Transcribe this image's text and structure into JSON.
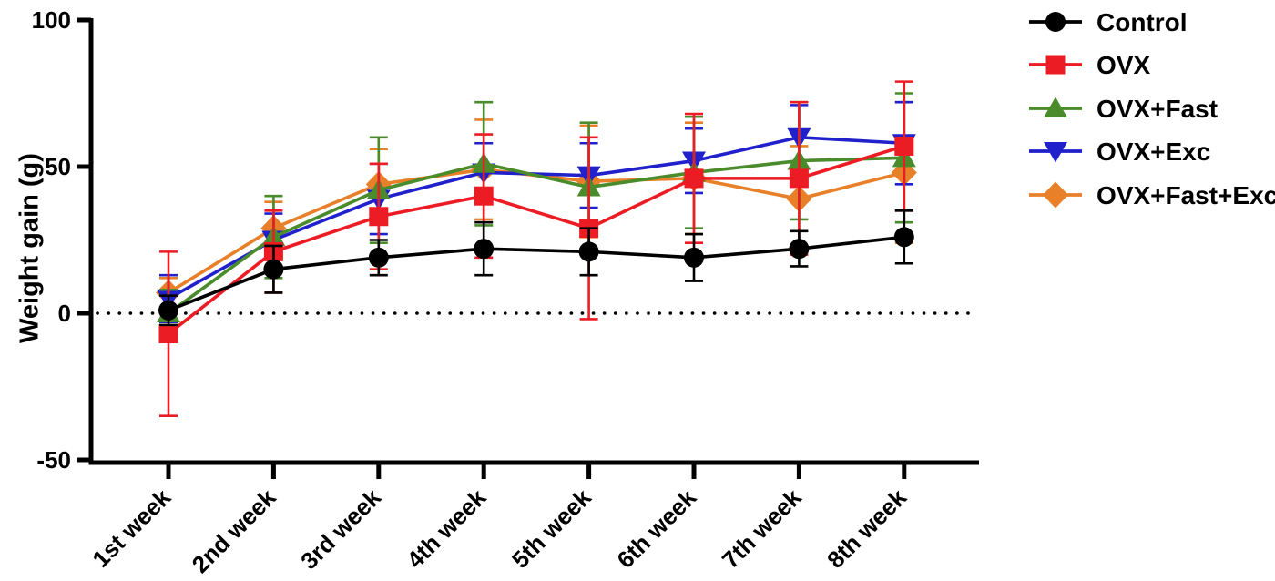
{
  "chart_data": {
    "type": "line",
    "title": "",
    "ylabel": "Weight gain (g)",
    "xlabel": "",
    "categories": [
      "1st week",
      "2nd week",
      "3rd week",
      "4th week",
      "5th week",
      "6th week",
      "7th week",
      "8th week"
    ],
    "y_ticks": [
      100,
      50,
      0,
      -50
    ],
    "ylim": [
      -50,
      100
    ],
    "grid": "off",
    "zero_line_style": "dotted",
    "legend_position": "top-right outside",
    "axis_color": "#000000",
    "error_bars": "symmetric, with caps",
    "series": [
      {
        "name": "Control",
        "marker": "circle",
        "color": "#000000",
        "values": [
          1,
          15,
          19,
          22,
          21,
          19,
          22,
          26
        ],
        "errors": [
          5,
          8,
          6,
          9,
          8,
          8,
          6,
          9
        ]
      },
      {
        "name": "OVX",
        "marker": "square",
        "color": "#EC1C24",
        "values": [
          -7,
          21,
          33,
          40,
          29,
          46,
          46,
          57
        ],
        "errors": [
          28,
          14,
          18,
          21,
          31,
          22,
          26,
          22
        ]
      },
      {
        "name": "OVX+Fast",
        "marker": "triangle-up",
        "color": "#4A8B2C",
        "values": [
          0,
          26,
          42,
          51,
          43,
          48,
          52,
          53
        ],
        "errors": [
          8,
          14,
          18,
          21,
          22,
          19,
          20,
          22
        ]
      },
      {
        "name": "OVX+Exc",
        "marker": "triangle-down",
        "color": "#2121CC",
        "values": [
          5,
          25,
          39,
          48,
          47,
          52,
          60,
          58
        ],
        "errors": [
          8,
          9,
          12,
          10,
          11,
          11,
          11,
          14
        ]
      },
      {
        "name": "OVX+Fast+Exc",
        "marker": "diamond",
        "color": "#E8802A",
        "values": [
          7,
          29,
          44,
          49,
          45,
          46,
          39,
          48
        ],
        "errors": [
          5,
          9,
          12,
          17,
          19,
          19,
          18,
          24
        ]
      }
    ]
  }
}
